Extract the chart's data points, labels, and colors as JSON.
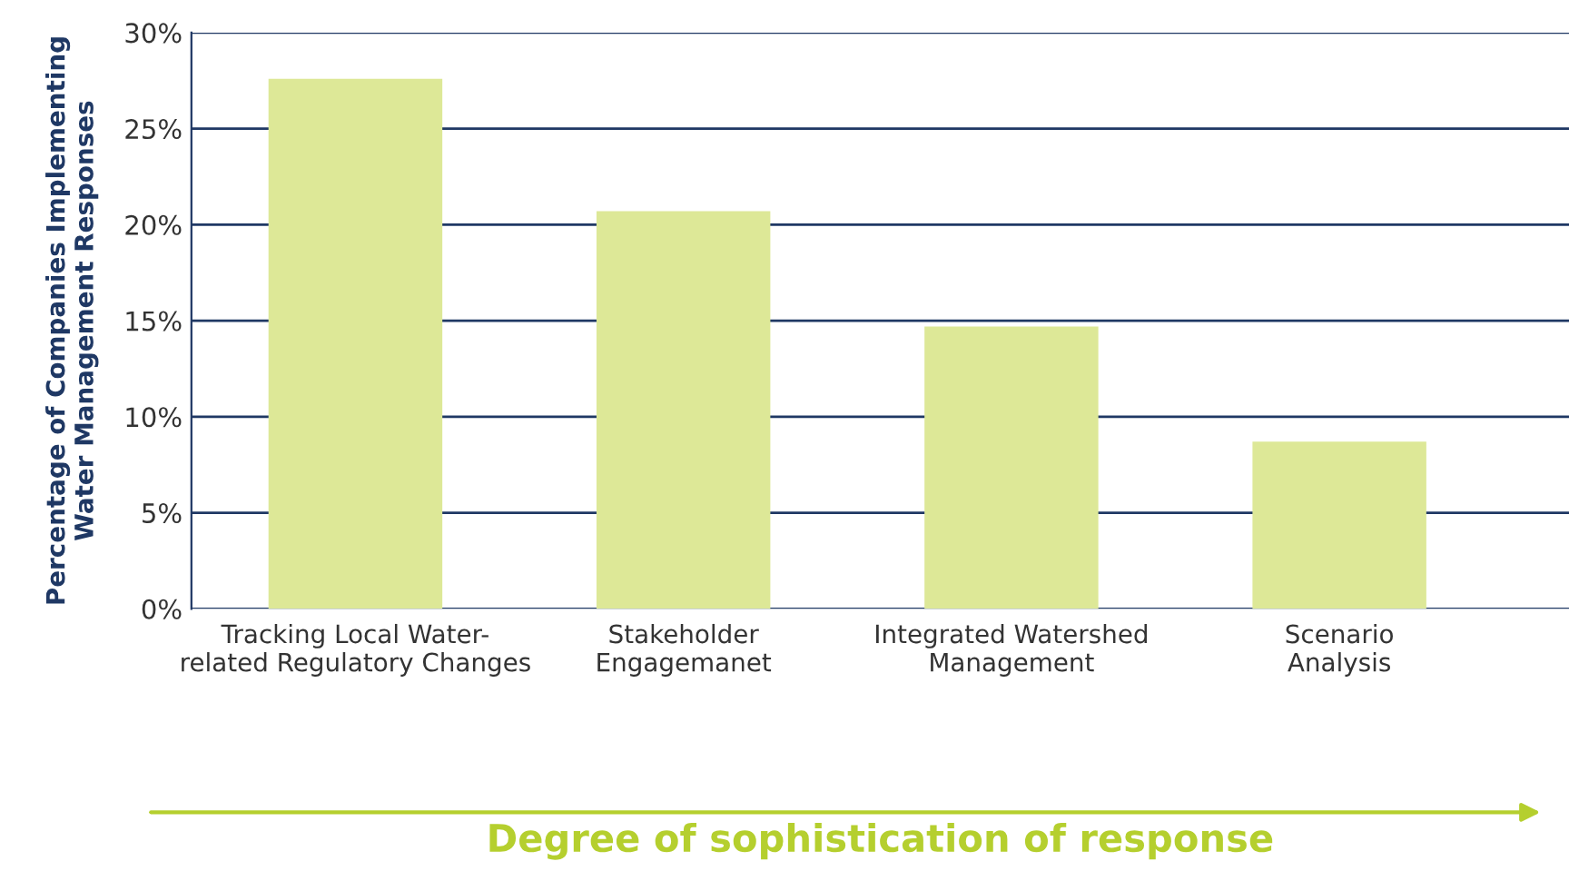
{
  "chart_data": {
    "type": "bar",
    "categories": [
      "Tracking Local Water-\nrelated Regulatory Changes",
      "Stakeholder\nEngagemanet",
      "Integrated Watershed\nManagement",
      "Scenario\nAnalysis"
    ],
    "values": [
      27.6,
      20.7,
      14.7,
      8.7
    ],
    "color": "#dde897",
    "ylabel": "Percentage of Companies Implementing\nWater Management Responses",
    "xlabel": "Degree of sophistication of response",
    "ylim": [
      0,
      30
    ],
    "yticks": [
      {
        "value": 0,
        "label": "0%"
      },
      {
        "value": 5,
        "label": "5%"
      },
      {
        "value": 10,
        "label": "10%"
      },
      {
        "value": 15,
        "label": "15%"
      },
      {
        "value": 20,
        "label": "20%"
      },
      {
        "value": 25,
        "label": "25%"
      },
      {
        "value": 30,
        "label": "30%"
      }
    ],
    "grid": "y"
  }
}
